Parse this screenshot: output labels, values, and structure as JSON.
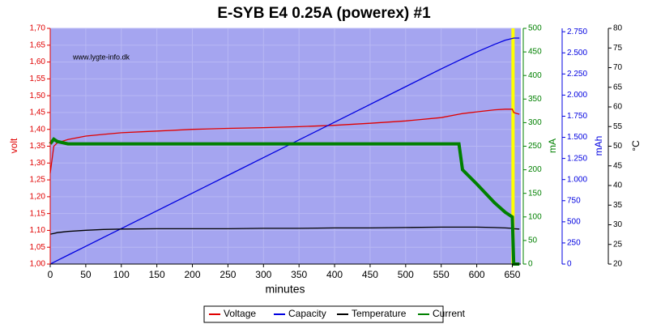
{
  "chart_data": {
    "type": "line",
    "title": "E-SYB E4 0.25A (powerex) #1",
    "watermark": "www.lygte-info.dk",
    "xlabel": "minutes",
    "ylabel": "volt",
    "y2label": "mA",
    "y3label": "mAh",
    "y4label": "°C",
    "x": [
      0,
      5,
      10,
      25,
      50,
      75,
      100,
      150,
      200,
      250,
      300,
      350,
      400,
      450,
      500,
      550,
      575,
      580,
      600,
      625,
      640,
      650,
      652,
      660
    ],
    "series": [
      {
        "name": "Voltage",
        "color": "#e00000",
        "axis": "y",
        "values": [
          1.27,
          1.35,
          1.36,
          1.37,
          1.38,
          1.385,
          1.39,
          1.395,
          1.4,
          1.403,
          1.405,
          1.408,
          1.412,
          1.418,
          1.425,
          1.435,
          1.445,
          1.447,
          1.452,
          1.458,
          1.46,
          1.46,
          1.45,
          1.445
        ]
      },
      {
        "name": "Capacity",
        "color": "#0000e0",
        "axis": "y3",
        "values": [
          0,
          21,
          42,
          105,
          210,
          315,
          420,
          630,
          840,
          1050,
          1260,
          1470,
          1680,
          1890,
          2100,
          2310,
          2410,
          2430,
          2510,
          2600,
          2650,
          2670,
          2675,
          2675
        ]
      },
      {
        "name": "Temperature",
        "color": "#000000",
        "axis": "y4",
        "values": [
          27.6,
          27.8,
          28,
          28.3,
          28.6,
          28.8,
          28.9,
          29,
          29,
          29,
          29.1,
          29.1,
          29.2,
          29.2,
          29.3,
          29.4,
          29.4,
          29.4,
          29.4,
          29.3,
          29.2,
          29.1,
          29,
          28.9
        ]
      },
      {
        "name": "Current",
        "color": "#008000",
        "axis": "y2",
        "values": [
          255,
          265,
          260,
          255,
          255,
          255,
          255,
          255,
          255,
          255,
          255,
          255,
          255,
          255,
          255,
          255,
          255,
          200,
          170,
          130,
          110,
          100,
          0,
          0
        ]
      }
    ],
    "highlight_x": 651,
    "highlight_color": "#ffff00",
    "xlim": [
      0,
      662
    ],
    "xticks": [
      0,
      50,
      100,
      150,
      200,
      250,
      300,
      350,
      400,
      450,
      500,
      550,
      600,
      650
    ],
    "ylim": [
      1.0,
      1.7
    ],
    "yticks": [
      {
        "value": 1.0,
        "label": "1,00"
      },
      {
        "value": 1.05,
        "label": "1,05"
      },
      {
        "value": 1.1,
        "label": "1,10"
      },
      {
        "value": 1.15,
        "label": "1,15"
      },
      {
        "value": 1.2,
        "label": "1,20"
      },
      {
        "value": 1.25,
        "label": "1,25"
      },
      {
        "value": 1.3,
        "label": "1,30"
      },
      {
        "value": 1.35,
        "label": "1,35"
      },
      {
        "value": 1.4,
        "label": "1,40"
      },
      {
        "value": 1.45,
        "label": "1,45"
      },
      {
        "value": 1.5,
        "label": "1,50"
      },
      {
        "value": 1.55,
        "label": "1,55"
      },
      {
        "value": 1.6,
        "label": "1,60"
      },
      {
        "value": 1.65,
        "label": "1,65"
      },
      {
        "value": 1.7,
        "label": "1,70"
      }
    ],
    "y2lim": [
      0,
      500
    ],
    "y2ticks": [
      0,
      50,
      100,
      150,
      200,
      250,
      300,
      350,
      400,
      450,
      500
    ],
    "y3lim": [
      0,
      2790
    ],
    "y3ticks": [
      0,
      250,
      500,
      750,
      {
        "value": 1000,
        "label": "1.000"
      },
      {
        "value": 1250,
        "label": "1.250"
      },
      {
        "value": 1500,
        "label": "1.500"
      },
      {
        "value": 1750,
        "label": "1.750"
      },
      {
        "value": 2000,
        "label": "2.000"
      },
      {
        "value": 2250,
        "label": "2.250"
      },
      {
        "value": 2500,
        "label": "2.500"
      },
      {
        "value": 2750,
        "label": "2.750"
      }
    ],
    "y4lim": [
      20,
      80
    ],
    "y4ticks": [
      20,
      25,
      30,
      35,
      40,
      45,
      50,
      55,
      60,
      65,
      70,
      75,
      80
    ],
    "grid": true,
    "legend": "bottom"
  }
}
